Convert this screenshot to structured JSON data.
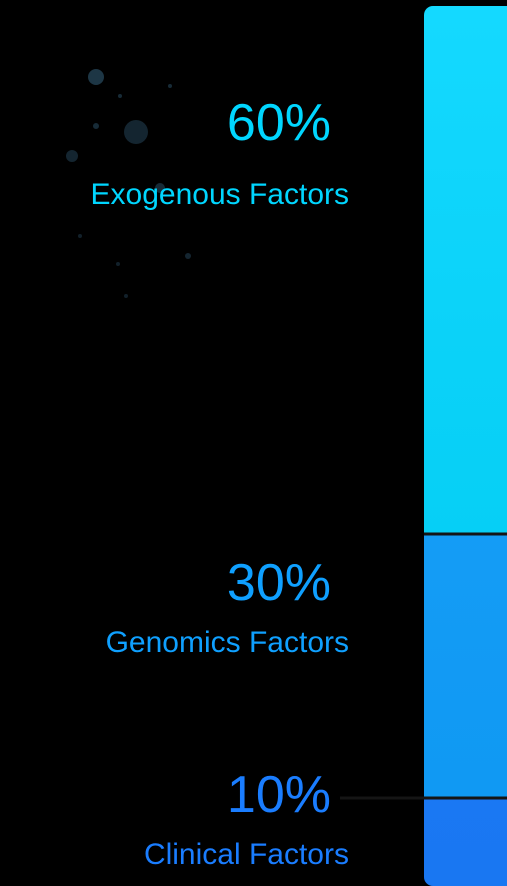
{
  "chart_data": {
    "type": "bar",
    "stacked": true,
    "ylim": [
      0,
      100
    ],
    "series": [
      {
        "name": "Exogenous Factors",
        "color": "#00d6ff",
        "values": [
          60
        ],
        "value_labels": [
          "60%"
        ]
      },
      {
        "name": "Genomics Factors",
        "color": "#0fa0ff",
        "values": [
          30
        ],
        "value_labels": [
          "30%"
        ]
      },
      {
        "name": "Clinical Factors",
        "color": "#1a7dff",
        "values": [
          10
        ],
        "value_labels": [
          "10%"
        ]
      }
    ]
  }
}
